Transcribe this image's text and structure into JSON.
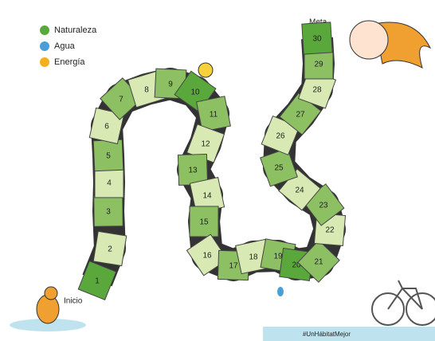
{
  "legend": [
    {
      "name": "Naturaleza",
      "color": "#5aa83c"
    },
    {
      "name": "Agua",
      "color": "#4a9fd8"
    },
    {
      "name": "Energía",
      "color": "#f2b01e"
    }
  ],
  "goal_label": "Meta",
  "start_label": "Inicio",
  "squares": [
    "1",
    "2",
    "3",
    "4",
    "5",
    "6",
    "7",
    "8",
    "9",
    "10",
    "11",
    "12",
    "13",
    "14",
    "15",
    "16",
    "17",
    "18",
    "19",
    "20",
    "21",
    "22",
    "23",
    "24",
    "25",
    "26",
    "27",
    "28",
    "29",
    "30"
  ],
  "hashtag": "#UnHábitatMejor"
}
